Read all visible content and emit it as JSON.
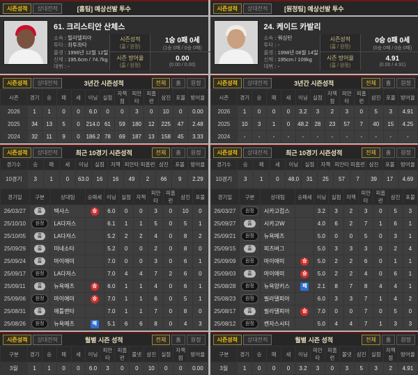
{
  "colors": {
    "accent_yellow": "#f2c11e",
    "win_red": "#cf2e2e",
    "loss_blue": "#2e6fcf",
    "section_border_red": "#6a1616"
  },
  "panels": [
    {
      "tabs": {
        "active": "시즌성적",
        "inactive": "상대전적"
      },
      "title": "[홈팀] 예상선발 투수",
      "player": {
        "name": "61. 크리스티안 산체스",
        "photo": {
          "cap": "#c8102e",
          "skin": "#7a5240",
          "jersey": "#f2f2f2"
        },
        "info": [
          {
            "label": "소속",
            "value": "필라델피아"
          },
          {
            "label": "투타",
            "value": "좌투좌타"
          },
          {
            "label": "출생",
            "value": "1996년 12월 12일"
          },
          {
            "label": "신체",
            "value": "195.6cm / 74.7kg"
          },
          {
            "label": "데뷔",
            "value": "-"
          }
        ],
        "record": {
          "label": "시즌성적",
          "sub": "(홈 / 원정)",
          "value": "1승 0패 0세",
          "detail": "(1승 0패 / 0승 0패)"
        },
        "era": {
          "label": "시즌 방어율",
          "sub": "(홈 / 원정)",
          "value": "0.00",
          "detail": "(0.00 / 0.00)"
        }
      },
      "season_section": {
        "title": "3년간 시즌성적",
        "filters": [
          "전체",
          "홈",
          "원정"
        ],
        "headers": [
          "시즌",
          "경기",
          "승",
          "패",
          "세",
          "이닝",
          "실점",
          "자책점",
          "피안타",
          "피홈런",
          "삼진",
          "포볼",
          "방어율"
        ],
        "rows": [
          [
            "2026",
            "1",
            "1",
            "0",
            "0",
            "6.0",
            "0",
            "0",
            "3",
            "0",
            "10",
            "0",
            "0.00"
          ],
          [
            "2025",
            "34",
            "13",
            "5",
            "0",
            "214.0",
            "61",
            "59",
            "180",
            "12",
            "225",
            "47",
            "2.48"
          ],
          [
            "2024",
            "32",
            "11",
            "9",
            "0",
            "186.2",
            "78",
            "69",
            "187",
            "13",
            "158",
            "45",
            "3.33"
          ]
        ]
      },
      "recent_section": {
        "title": "최근 10경기 시즌성적",
        "filters": [
          "전체",
          "홈",
          "원정"
        ],
        "summary_headers": [
          "경기수",
          "승",
          "패",
          "세",
          "이닝",
          "실점",
          "자책",
          "피안타",
          "피홈런",
          "삼진",
          "포볼",
          "방어율"
        ],
        "summary_rows": [
          [
            "10경기",
            "3",
            "1",
            "0",
            "63.0",
            "16",
            "16",
            "49",
            "2",
            "66",
            "9",
            "2.29"
          ]
        ],
        "game_headers": [
          "경기일",
          "구분",
          "상대팀",
          "승패세",
          "이닝",
          "실점",
          "자책",
          "피안타",
          "피홈런",
          "삼진",
          "포볼"
        ],
        "games": [
          {
            "date": "26/03/27",
            "loc": "홈",
            "opp": "텍사스",
            "res": "승",
            "stats": [
              "6.0",
              "0",
              "0",
              "3",
              "0",
              "10",
              "0"
            ]
          },
          {
            "date": "25/10/10",
            "loc": "원정",
            "opp": "LA다저스",
            "res": "",
            "stats": [
              "6.1",
              "1",
              "1",
              "5",
              "0",
              "5",
              "1"
            ]
          },
          {
            "date": "25/10/05",
            "loc": "홈",
            "opp": "LA다저스",
            "res": "",
            "stats": [
              "5.2",
              "2",
              "2",
              "4",
              "0",
              "8",
              "2"
            ]
          },
          {
            "date": "25/09/29",
            "loc": "홈",
            "opp": "미네소타",
            "res": "",
            "stats": [
              "5.2",
              "0",
              "0",
              "2",
              "0",
              "8",
              "0"
            ]
          },
          {
            "date": "25/09/24",
            "loc": "홈",
            "opp": "마이애미",
            "res": "",
            "stats": [
              "7.0",
              "0",
              "0",
              "3",
              "0",
              "6",
              "1"
            ]
          },
          {
            "date": "25/09/17",
            "loc": "원정",
            "opp": "LA다저스",
            "res": "",
            "stats": [
              "7.0",
              "4",
              "4",
              "7",
              "2",
              "6",
              "0"
            ]
          },
          {
            "date": "25/09/11",
            "loc": "홈",
            "opp": "뉴욕메츠",
            "res": "승",
            "stats": [
              "6.0",
              "1",
              "1",
              "4",
              "0",
              "6",
              "1"
            ]
          },
          {
            "date": "25/09/06",
            "loc": "원정",
            "opp": "마이애미",
            "res": "승",
            "stats": [
              "7.0",
              "1",
              "1",
              "6",
              "0",
              "5",
              "1"
            ]
          },
          {
            "date": "25/08/31",
            "loc": "홈",
            "opp": "애틀랜타",
            "res": "",
            "stats": [
              "7.0",
              "1",
              "1",
              "7",
              "0",
              "8",
              "0"
            ]
          },
          {
            "date": "25/08/26",
            "loc": "원정",
            "opp": "뉴욕메츠",
            "res": "패",
            "stats": [
              "5.1",
              "6",
              "6",
              "8",
              "0",
              "4",
              "3"
            ]
          }
        ]
      },
      "monthly_section": {
        "title": "월별 시즌 성적",
        "filters": [
          "전체",
          "홈",
          "원정"
        ],
        "headers": [
          "구분",
          "경기",
          "승",
          "패",
          "세",
          "이닝",
          "피안타",
          "피홈런",
          "볼넷",
          "삼진",
          "실점",
          "자책점",
          "방어율"
        ],
        "rows": [
          [
            "3월",
            "1",
            "1",
            "0",
            "0",
            "6.0",
            "3",
            "0",
            "0",
            "10",
            "0",
            "0",
            "0.00"
          ]
        ]
      }
    },
    {
      "tabs": {
        "active": "시즌성적",
        "inactive": "상대전적"
      },
      "title": "[원정팀] 예상선발 투수",
      "player": {
        "name": "24. 케이드 카발리",
        "photo": {
          "cap": "#f0ece4",
          "skin": "#c9a080",
          "jersey": "#f2f2f2"
        },
        "info": [
          {
            "label": "소속",
            "value": "워싱턴"
          },
          {
            "label": "투타",
            "value": "-"
          },
          {
            "label": "출생",
            "value": "1998년 08월 14일"
          },
          {
            "label": "신체",
            "value": "195cm / 109kg"
          },
          {
            "label": "데뷔",
            "value": "-"
          }
        ],
        "record": {
          "label": "시즌성적",
          "sub": "(홈 / 원정)",
          "value": "0승 0패 0세",
          "detail": "(0승 0패 / 0승 0패)"
        },
        "era": {
          "label": "시즌 방어율",
          "sub": "(홈 / 원정)",
          "value": "4.91",
          "detail": "(0.00 / 4.91)"
        }
      },
      "season_section": {
        "title": "3년간 시즌성적",
        "filters": [
          "전체",
          "홈",
          "원정"
        ],
        "headers": [
          "시즌",
          "경기",
          "승",
          "패",
          "세",
          "이닝",
          "실점",
          "자책점",
          "피안타",
          "피홈런",
          "삼진",
          "포볼",
          "방어율"
        ],
        "rows": [
          [
            "2026",
            "1",
            "0",
            "0",
            "0",
            "3.2",
            "3",
            "2",
            "3",
            "0",
            "5",
            "3",
            "4.91"
          ],
          [
            "2025",
            "10",
            "3",
            "1",
            "0",
            "48.2",
            "28",
            "23",
            "57",
            "7",
            "40",
            "15",
            "4.25"
          ],
          [
            "2024",
            "-",
            "-",
            "-",
            "-",
            "-",
            "-",
            "-",
            "-",
            "-",
            "-",
            "-",
            "-"
          ]
        ]
      },
      "recent_section": {
        "title": "최근 10경기 시즌성적",
        "filters": [
          "전체",
          "홈",
          "원정"
        ],
        "summary_headers": [
          "경기수",
          "승",
          "패",
          "세",
          "이닝",
          "실점",
          "자책",
          "피안타",
          "피홈런",
          "삼진",
          "포볼",
          "방어율"
        ],
        "summary_rows": [
          [
            "10경기",
            "3",
            "1",
            "0",
            "48.0",
            "31",
            "25",
            "57",
            "7",
            "39",
            "17",
            "4.69"
          ]
        ],
        "game_headers": [
          "경기일",
          "구분",
          "상대팀",
          "승패세",
          "이닝",
          "실점",
          "자책",
          "피안타",
          "피홈런",
          "삼진",
          "포볼"
        ],
        "games": [
          {
            "date": "26/03/27",
            "loc": "원정",
            "opp": "시카고컵스",
            "res": "",
            "stats": [
              "3.2",
              "3",
              "2",
              "3",
              "0",
              "5",
              "3"
            ]
          },
          {
            "date": "25/09/27",
            "loc": "홈",
            "opp": "시카고W",
            "res": "",
            "stats": [
              "4.0",
              "6",
              "2",
              "7",
              "1",
              "6",
              "1"
            ]
          },
          {
            "date": "25/09/21",
            "loc": "원정",
            "opp": "뉴욕메츠",
            "res": "",
            "stats": [
              "5.0",
              "0",
              "0",
              "5",
              "0",
              "3",
              "1"
            ]
          },
          {
            "date": "25/09/15",
            "loc": "홈",
            "opp": "피츠버그",
            "res": "",
            "stats": [
              "5.0",
              "3",
              "3",
              "3",
              "0",
              "2",
              "4"
            ]
          },
          {
            "date": "25/09/09",
            "loc": "원정",
            "opp": "마이애미",
            "res": "승",
            "stats": [
              "5.0",
              "2",
              "2",
              "6",
              "0",
              "1",
              "1"
            ]
          },
          {
            "date": "25/09/03",
            "loc": "홈",
            "opp": "마이애미",
            "res": "승",
            "stats": [
              "5.0",
              "2",
              "2",
              "4",
              "0",
              "6",
              "1"
            ]
          },
          {
            "date": "25/08/28",
            "loc": "원정",
            "opp": "뉴욕양키스",
            "res": "패",
            "stats": [
              "2.1",
              "8",
              "7",
              "8",
              "4",
              "4",
              "1"
            ]
          },
          {
            "date": "25/08/23",
            "loc": "원정",
            "opp": "필라델피아",
            "res": "",
            "stats": [
              "6.0",
              "3",
              "3",
              "7",
              "1",
              "4",
              "2"
            ]
          },
          {
            "date": "25/08/17",
            "loc": "홈",
            "opp": "필라델피아",
            "res": "승",
            "stats": [
              "7.0",
              "0",
              "0",
              "7",
              "0",
              "5",
              "0"
            ]
          },
          {
            "date": "25/08/12",
            "loc": "원정",
            "opp": "캔자스시티",
            "res": "",
            "stats": [
              "5.0",
              "4",
              "4",
              "7",
              "1",
              "3",
              "3"
            ]
          }
        ]
      },
      "monthly_section": {
        "title": "월별 시즌 성적",
        "filters": [
          "전체",
          "홈",
          "원정"
        ],
        "headers": [
          "구분",
          "경기",
          "승",
          "패",
          "세",
          "이닝",
          "피안타",
          "피홈런",
          "볼넷",
          "삼진",
          "실점",
          "자책점",
          "방어율"
        ],
        "rows": [
          [
            "3월",
            "1",
            "0",
            "0",
            "0",
            "3.2",
            "3",
            "0",
            "3",
            "5",
            "3",
            "2",
            "4.91"
          ]
        ]
      }
    }
  ]
}
